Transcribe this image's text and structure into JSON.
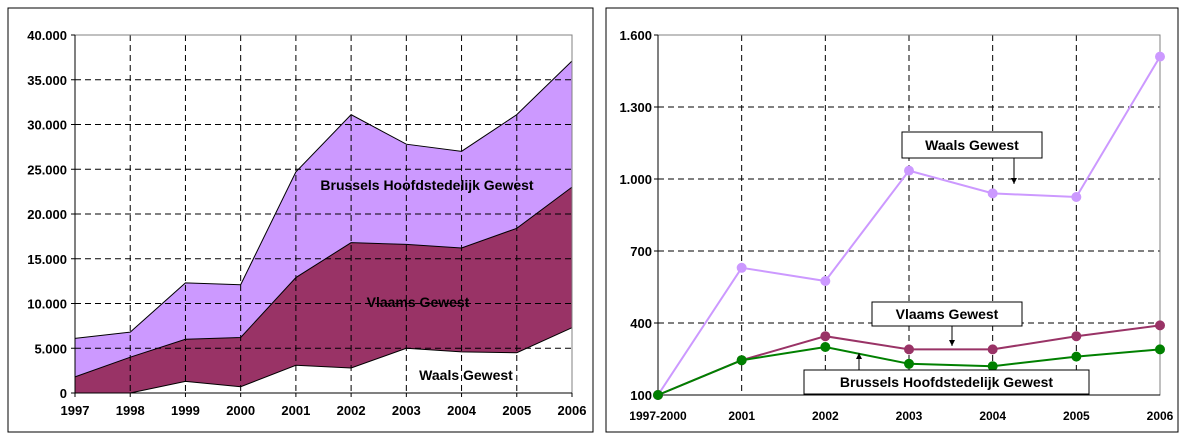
{
  "chart_data": [
    {
      "type": "area",
      "stacked": true,
      "categories": [
        "1997",
        "1998",
        "1999",
        "2000",
        "2001",
        "2002",
        "2003",
        "2004",
        "2005",
        "2006"
      ],
      "yticks": [
        "0",
        "5.000",
        "10.000",
        "15.000",
        "20.000",
        "25.000",
        "30.000",
        "35.000",
        "40.000"
      ],
      "ylim": [
        0,
        40000
      ],
      "grid": true,
      "series": [
        {
          "name": "Waals Gewest",
          "color": "#ffffff",
          "values": [
            0,
            0,
            1300,
            700,
            3100,
            2800,
            5000,
            4600,
            4500,
            7300
          ]
        },
        {
          "name": "Vlaams Gewest",
          "color": "#993366",
          "values": [
            1800,
            4000,
            4700,
            5500,
            9800,
            14000,
            11600,
            11600,
            13900,
            15700
          ]
        },
        {
          "name": "Brussels Hoofdstedelijk Gewest",
          "color": "#cc99ff",
          "values": [
            4300,
            2800,
            6300,
            5900,
            11800,
            14300,
            11200,
            10800,
            12700,
            14100
          ]
        }
      ]
    },
    {
      "type": "line",
      "categories": [
        "1997-2000",
        "2001",
        "2002",
        "2003",
        "2004",
        "2005",
        "2006"
      ],
      "yticks": [
        "100",
        "400",
        "700",
        "1.000",
        "1.300",
        "1.600"
      ],
      "ylim": [
        100,
        1600
      ],
      "grid": true,
      "series": [
        {
          "name": "Waals Gewest",
          "color": "#cc99ff",
          "values": [
            100,
            630,
            575,
            1035,
            940,
            925,
            1510
          ]
        },
        {
          "name": "Vlaams Gewest",
          "color": "#993366",
          "values": [
            100,
            245,
            345,
            290,
            290,
            345,
            390
          ]
        },
        {
          "name": "Brussels Hoofdstedelijk Gewest",
          "color": "#008000",
          "values": [
            100,
            245,
            300,
            230,
            220,
            260,
            290
          ]
        }
      ]
    }
  ]
}
